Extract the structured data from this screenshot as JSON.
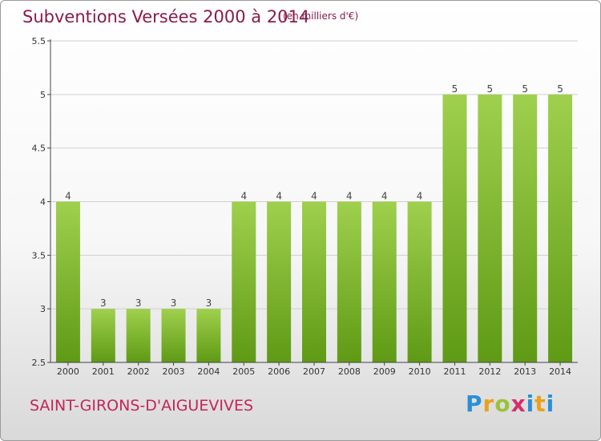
{
  "header": {
    "title": "Subventions Versées 2000 à 2014",
    "subtitle": "(en milliers d'€)"
  },
  "footer": {
    "commune": "SAINT-GIRONS-D'AIGUEVIVES",
    "logo_text": "Proxiti",
    "logo_colors": [
      "#2b8fd6",
      "#e8a21c",
      "#9ac23c",
      "#d32f6c",
      "#2b8fd6",
      "#e8a21c",
      "#2b8fd6"
    ]
  },
  "colors": {
    "bar_top": "#9fd04e",
    "bar_bottom": "#5f9a15",
    "grid": "#d0d0d0",
    "axis": "#444444"
  },
  "chart_data": {
    "type": "bar",
    "title": "Subventions Versées 2000 à 2014",
    "subtitle": "(en milliers d'€)",
    "categories": [
      "2000",
      "2001",
      "2002",
      "2003",
      "2004",
      "2005",
      "2006",
      "2007",
      "2008",
      "2009",
      "2010",
      "2011",
      "2012",
      "2013",
      "2014"
    ],
    "values": [
      4,
      3,
      3,
      3,
      3,
      4,
      4,
      4,
      4,
      4,
      4,
      5,
      5,
      5,
      5
    ],
    "data_labels": [
      "4",
      "3",
      "3",
      "3",
      "3",
      "4",
      "4",
      "4",
      "4",
      "4",
      "4",
      "5",
      "5",
      "5",
      "5"
    ],
    "ylim": [
      2.5,
      5.5
    ],
    "yticks": [
      2.5,
      3,
      3.5,
      4,
      4.5,
      5,
      5.5
    ],
    "ytick_labels": [
      "2.5",
      "3",
      "3.5",
      "4",
      "4.5",
      "5",
      "5.5"
    ],
    "grid": true,
    "legend": "none"
  }
}
